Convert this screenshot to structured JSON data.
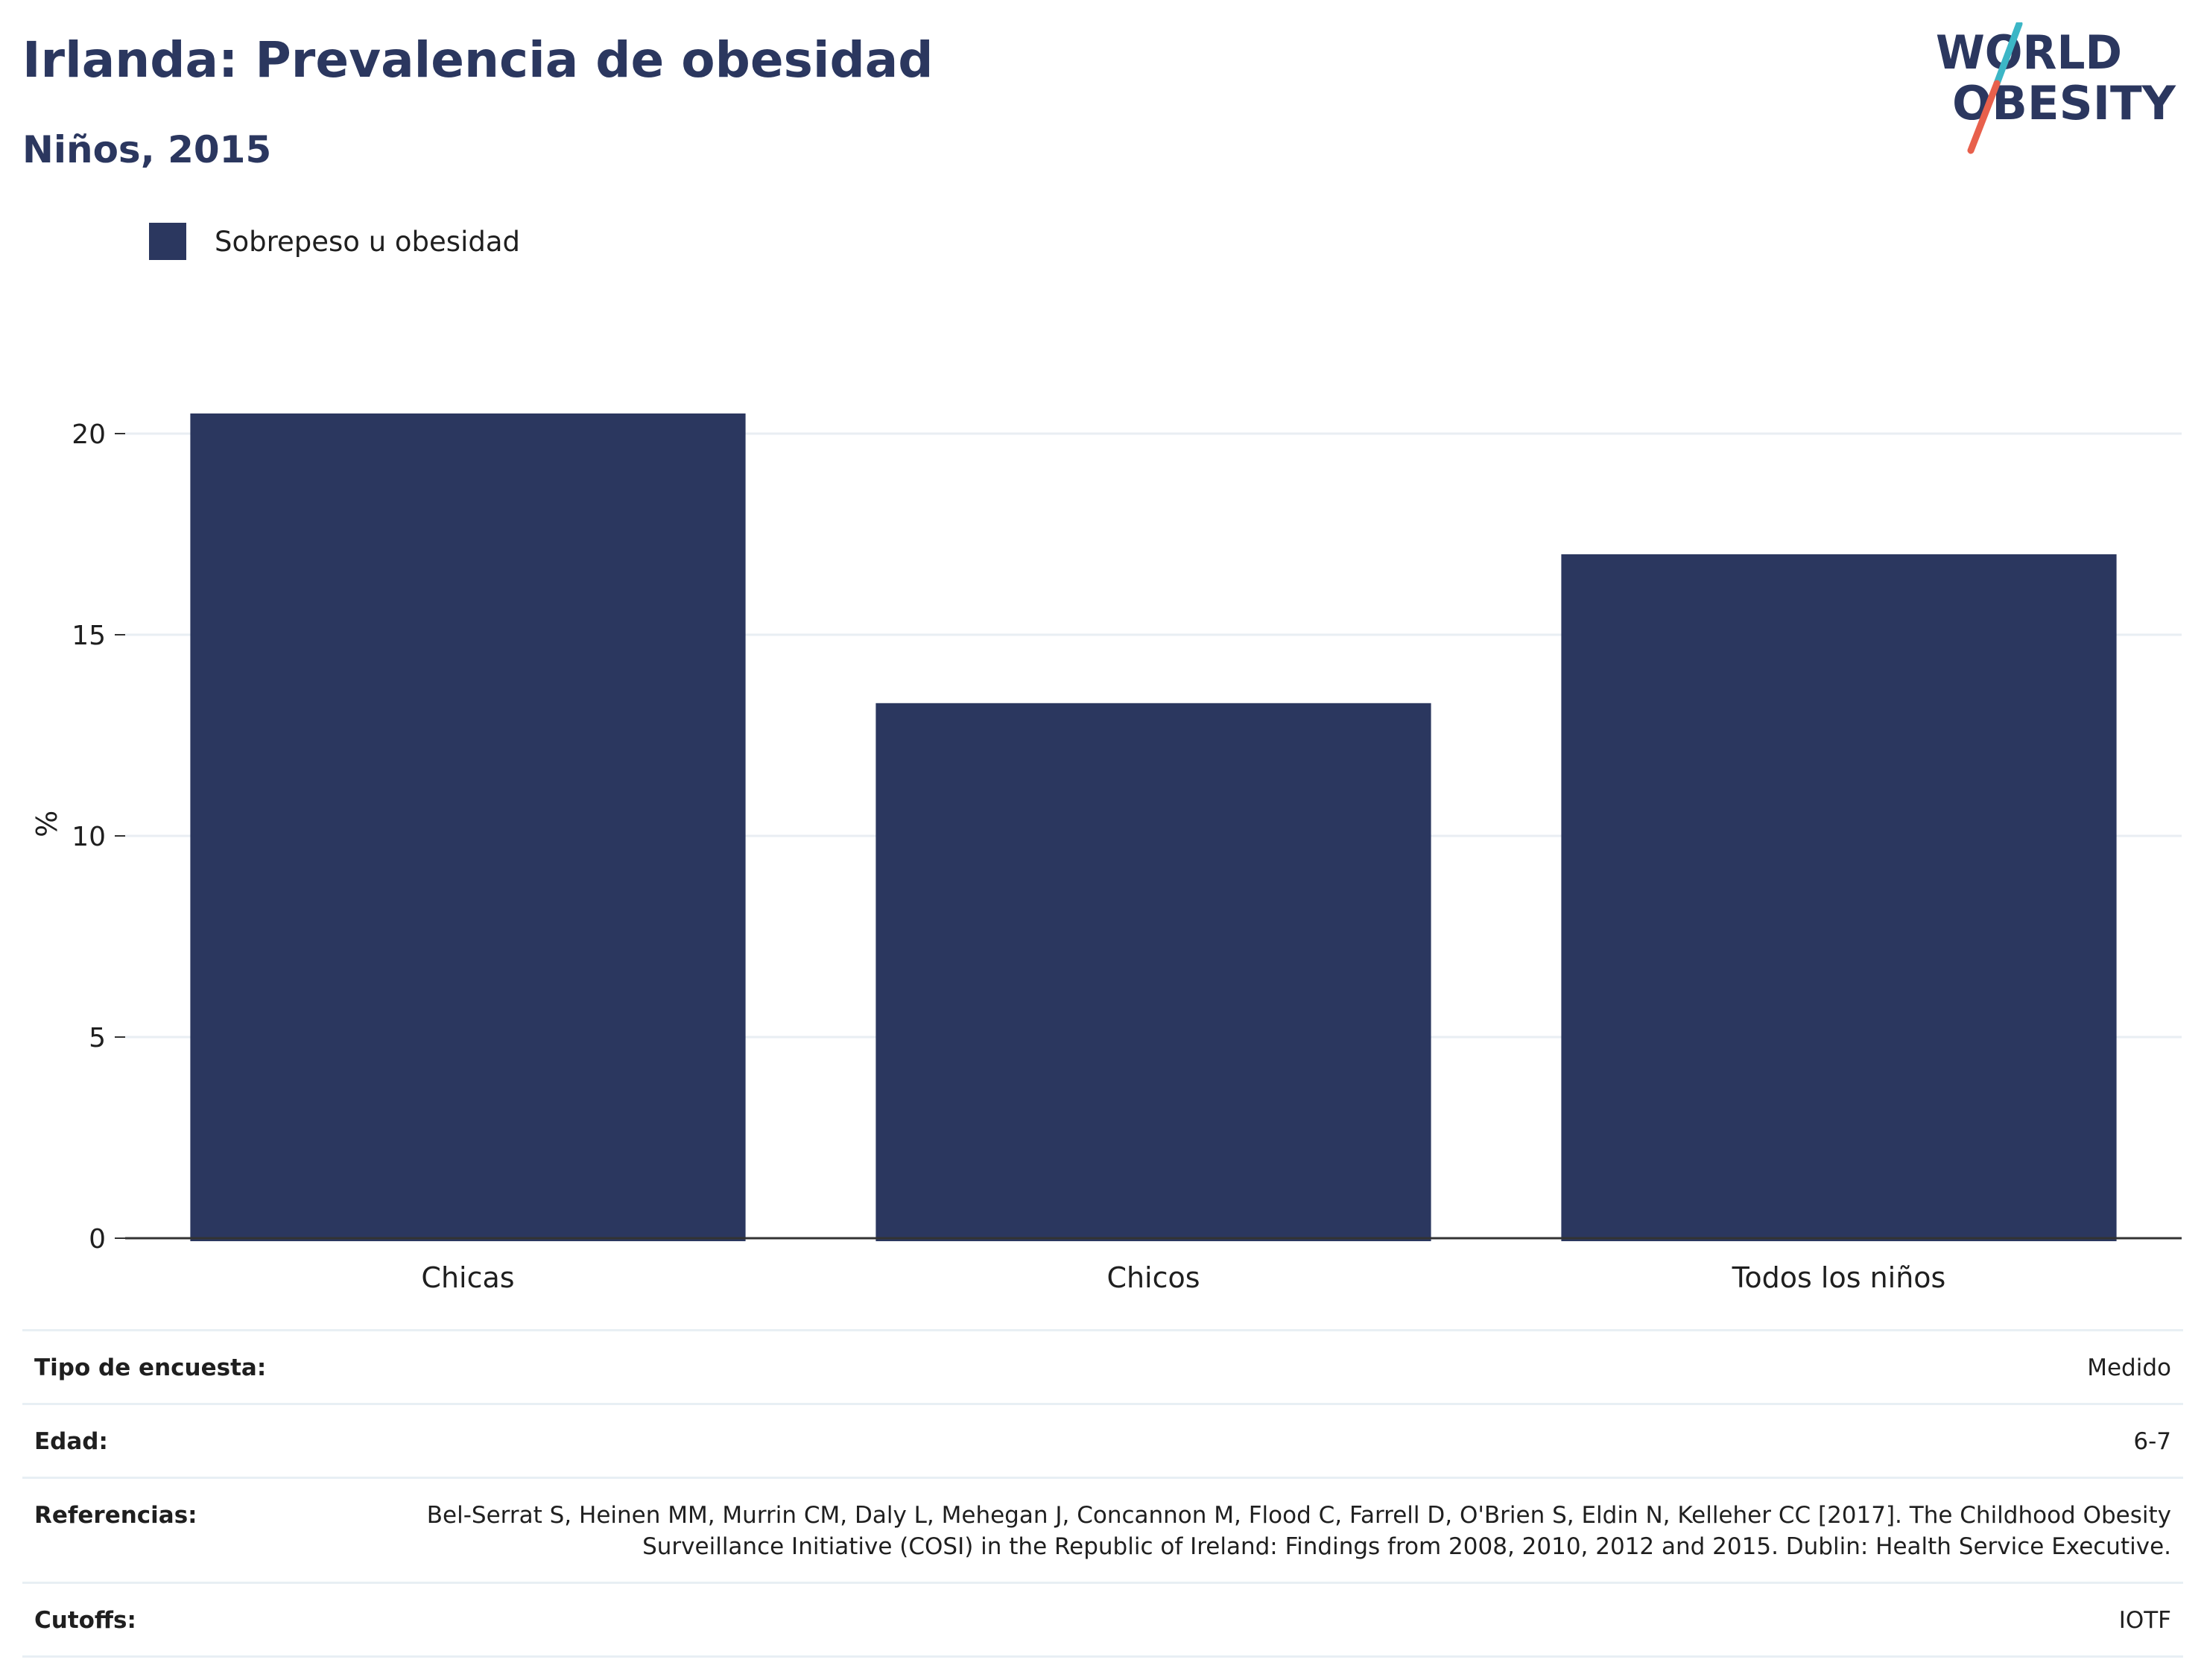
{
  "header": {
    "title": "Irlanda: Prevalencia de obesidad",
    "subtitle": "Niños, 2015"
  },
  "logo": {
    "line1": "WORLD",
    "line2": "OBESITY",
    "colors": {
      "text": "#2b375f",
      "slash_teal": "#3cb6c6",
      "slash_coral": "#e8604c"
    }
  },
  "chart_data": {
    "type": "bar",
    "title": "Irlanda: Prevalencia de obesidad",
    "subtitle": "Niños, 2015",
    "categories": [
      "Chicas",
      "Chicos",
      "Todos los niños"
    ],
    "series": [
      {
        "name": "Sobrepeso u obesidad",
        "values": [
          20.5,
          13.3,
          17.0
        ],
        "color": "#2b375f"
      }
    ],
    "xlabel": "",
    "ylabel": "%",
    "ylim": [
      0,
      22.5
    ],
    "yticks": [
      0,
      5,
      10,
      15,
      20
    ],
    "grid": true,
    "legend_position": "top-left"
  },
  "info": [
    {
      "key": "Tipo de encuesta:",
      "value": "Medido"
    },
    {
      "key": "Edad:",
      "value": "6-7"
    },
    {
      "key": "Referencias:",
      "value": "Bel-Serrat S, Heinen MM, Murrin CM, Daly L, Mehegan J, Concannon M, Flood C, Farrell D, O'Brien S, Eldin N, Kelleher CC [2017]. The Childhood Obesity Surveillance Initiative (COSI) in the Republic of Ireland: Findings from 2008, 2010, 2012 and 2015. Dublin: Health Service Executive."
    },
    {
      "key": "Cutoffs:",
      "value": "IOTF"
    }
  ],
  "colors": {
    "primary": "#2b375f",
    "grid": "#e9eef3",
    "axis": "#333333"
  }
}
